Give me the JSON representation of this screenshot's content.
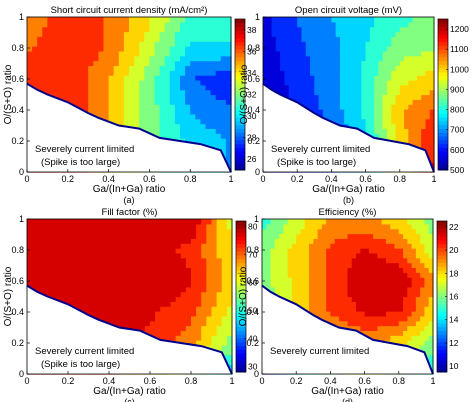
{
  "colormap": [
    "#00008f",
    "#0000ff",
    "#0080ff",
    "#00ffff",
    "#80ff80",
    "#ffff00",
    "#ff8000",
    "#ff0000",
    "#800000"
  ],
  "chart_data": [
    {
      "panel_label": "(a)",
      "type": "heatmap",
      "title": "Short circuit current density (mA/cm²)",
      "xlabel": "Ga/(In+Ga) ratio",
      "ylabel": "O/(S+O) ratio",
      "xlim": [
        0,
        1
      ],
      "ylim": [
        0,
        1
      ],
      "xticks": [
        "0",
        "0.2",
        "0.4",
        "0.6",
        "0.8",
        "1"
      ],
      "yticks": [
        "0",
        "0.2",
        "0.4",
        "0.6",
        "0.8",
        "1"
      ],
      "colorbar": {
        "range": [
          25,
          39
        ],
        "ticks": [
          "26",
          "28",
          "30",
          "32",
          "34",
          "36",
          "38"
        ]
      },
      "annotation": [
        "Severely current limited",
        "(Spike is too large)"
      ],
      "no_data_boundary": [
        [
          0,
          0.57
        ],
        [
          0.05,
          0.53
        ],
        [
          0.1,
          0.5
        ],
        [
          0.2,
          0.45
        ],
        [
          0.3,
          0.38
        ],
        [
          0.35,
          0.35
        ],
        [
          0.45,
          0.3
        ],
        [
          0.55,
          0.28
        ],
        [
          0.65,
          0.22
        ],
        [
          0.75,
          0.2
        ],
        [
          0.85,
          0.18
        ],
        [
          0.95,
          0.14
        ],
        [
          1,
          0
        ]
      ],
      "field": {
        "x": [
          0,
          0.2,
          0.4,
          0.6,
          0.8,
          1.0
        ],
        "y": [
          0,
          0.2,
          0.4,
          0.6,
          0.8,
          1.0
        ],
        "z": [
          [
            38,
            37,
            35,
            32,
            30,
            29
          ],
          [
            38,
            37,
            35,
            32,
            30,
            29
          ],
          [
            38,
            37,
            35,
            32,
            29,
            28
          ],
          [
            37,
            37,
            35,
            32,
            28,
            27
          ],
          [
            36,
            37,
            36,
            33,
            30,
            30
          ],
          [
            35,
            37,
            36,
            34,
            31,
            31
          ]
        ]
      }
    },
    {
      "panel_label": "(b)",
      "type": "heatmap",
      "title": "Open circuit voltage (mV)",
      "xlabel": "Ga/(In+Ga) ratio",
      "ylabel": "O/(S+O) ratio",
      "xlim": [
        0,
        1
      ],
      "ylim": [
        0,
        1
      ],
      "xticks": [
        "0",
        "0.2",
        "0.4",
        "0.6",
        "0.8",
        "1"
      ],
      "yticks": [
        "0",
        "0.2",
        "0.4",
        "0.6",
        "0.8",
        "1"
      ],
      "colorbar": {
        "range": [
          500,
          1250
        ],
        "ticks": [
          "500",
          "600",
          "700",
          "800",
          "900",
          "1000",
          "1100",
          "1200"
        ]
      },
      "annotation": [
        "Severely current limited",
        "(Spike is too large)"
      ],
      "no_data_boundary": [
        [
          0,
          0.57
        ],
        [
          0.05,
          0.53
        ],
        [
          0.1,
          0.5
        ],
        [
          0.2,
          0.45
        ],
        [
          0.3,
          0.38
        ],
        [
          0.35,
          0.35
        ],
        [
          0.45,
          0.3
        ],
        [
          0.55,
          0.28
        ],
        [
          0.65,
          0.22
        ],
        [
          0.75,
          0.2
        ],
        [
          0.85,
          0.18
        ],
        [
          0.95,
          0.14
        ],
        [
          1,
          0
        ]
      ],
      "field": {
        "x": [
          0,
          0.2,
          0.4,
          0.6,
          0.8,
          1.0
        ],
        "y": [
          0,
          0.2,
          0.4,
          0.6,
          0.8,
          1.0
        ],
        "z": [
          [
            520,
            560,
            640,
            720,
            950,
            1180
          ],
          [
            530,
            580,
            660,
            760,
            1000,
            1150
          ],
          [
            540,
            600,
            680,
            800,
            1020,
            1100
          ],
          [
            550,
            620,
            700,
            800,
            950,
            1000
          ],
          [
            560,
            640,
            700,
            780,
            880,
            900
          ],
          [
            580,
            660,
            720,
            760,
            820,
            880
          ]
        ]
      }
    },
    {
      "panel_label": "(c)",
      "type": "heatmap",
      "title": "Fill factor (%)",
      "xlabel": "Ga/(In+Ga) ratio",
      "ylabel": "O/(S+O) ratio",
      "xlim": [
        0,
        1
      ],
      "ylim": [
        0,
        1
      ],
      "xticks": [
        "0",
        "0.2",
        "0.4",
        "0.6",
        "0.8",
        "1"
      ],
      "yticks": [
        "0",
        "0.2",
        "0.4",
        "0.6",
        "0.8",
        "1"
      ],
      "colorbar": {
        "range": [
          28,
          82
        ],
        "ticks": [
          "30",
          "40",
          "50",
          "60",
          "70",
          "80"
        ]
      },
      "annotation": [
        "Severely current limited",
        "(Spike is too large)"
      ],
      "no_data_boundary": [
        [
          0,
          0.57
        ],
        [
          0.05,
          0.53
        ],
        [
          0.1,
          0.5
        ],
        [
          0.2,
          0.45
        ],
        [
          0.3,
          0.38
        ],
        [
          0.35,
          0.35
        ],
        [
          0.45,
          0.3
        ],
        [
          0.55,
          0.28
        ],
        [
          0.65,
          0.22
        ],
        [
          0.75,
          0.2
        ],
        [
          0.85,
          0.18
        ],
        [
          0.95,
          0.14
        ],
        [
          1,
          0
        ]
      ],
      "field": {
        "x": [
          0,
          0.2,
          0.4,
          0.6,
          0.8,
          1.0
        ],
        "y": [
          0,
          0.2,
          0.4,
          0.6,
          0.8,
          1.0
        ],
        "z": [
          [
            76,
            75,
            72,
            66,
            55,
            45
          ],
          [
            77,
            77,
            76,
            74,
            68,
            55
          ],
          [
            78,
            78,
            77,
            76,
            72,
            60
          ],
          [
            78,
            78,
            78,
            80,
            76,
            64
          ],
          [
            77,
            78,
            78,
            77,
            74,
            62
          ],
          [
            76,
            77,
            77,
            76,
            80,
            60
          ]
        ]
      }
    },
    {
      "panel_label": "(d)",
      "type": "heatmap",
      "title": "Efficiency (%)",
      "xlabel": "Ga/(In+Ga) ratio",
      "ylabel": "O/(S+O) ratio",
      "xlim": [
        0,
        1
      ],
      "ylim": [
        0,
        1
      ],
      "xticks": [
        "0",
        "0.2",
        "0.4",
        "0.6",
        "0.8",
        "1"
      ],
      "yticks": [
        "0",
        "0.2",
        "0.4",
        "0.6",
        "0.8",
        "1"
      ],
      "colorbar": {
        "range": [
          9.5,
          22.5
        ],
        "ticks": [
          "10",
          "12",
          "14",
          "16",
          "18",
          "20",
          "22"
        ]
      },
      "annotation": [
        "Severely current limited"
      ],
      "no_data_boundary": [
        [
          0,
          0.57
        ],
        [
          0.05,
          0.53
        ],
        [
          0.1,
          0.5
        ],
        [
          0.2,
          0.45
        ],
        [
          0.3,
          0.38
        ],
        [
          0.35,
          0.35
        ],
        [
          0.45,
          0.3
        ],
        [
          0.55,
          0.28
        ],
        [
          0.65,
          0.22
        ],
        [
          0.75,
          0.2
        ],
        [
          0.85,
          0.18
        ],
        [
          0.95,
          0.14
        ],
        [
          1,
          0
        ]
      ],
      "field": {
        "x": [
          0,
          0.2,
          0.4,
          0.6,
          0.8,
          1.0
        ],
        "y": [
          0,
          0.2,
          0.4,
          0.6,
          0.8,
          1.0
        ],
        "z": [
          [
            11,
            14,
            16,
            17,
            16,
            14
          ],
          [
            13,
            16,
            18,
            19,
            18,
            16
          ],
          [
            15,
            18,
            20,
            21,
            21,
            18
          ],
          [
            16,
            18,
            20,
            22,
            22,
            19
          ],
          [
            16,
            18,
            20,
            21,
            20,
            17
          ],
          [
            15,
            17,
            19,
            19,
            18,
            16
          ]
        ]
      }
    }
  ]
}
